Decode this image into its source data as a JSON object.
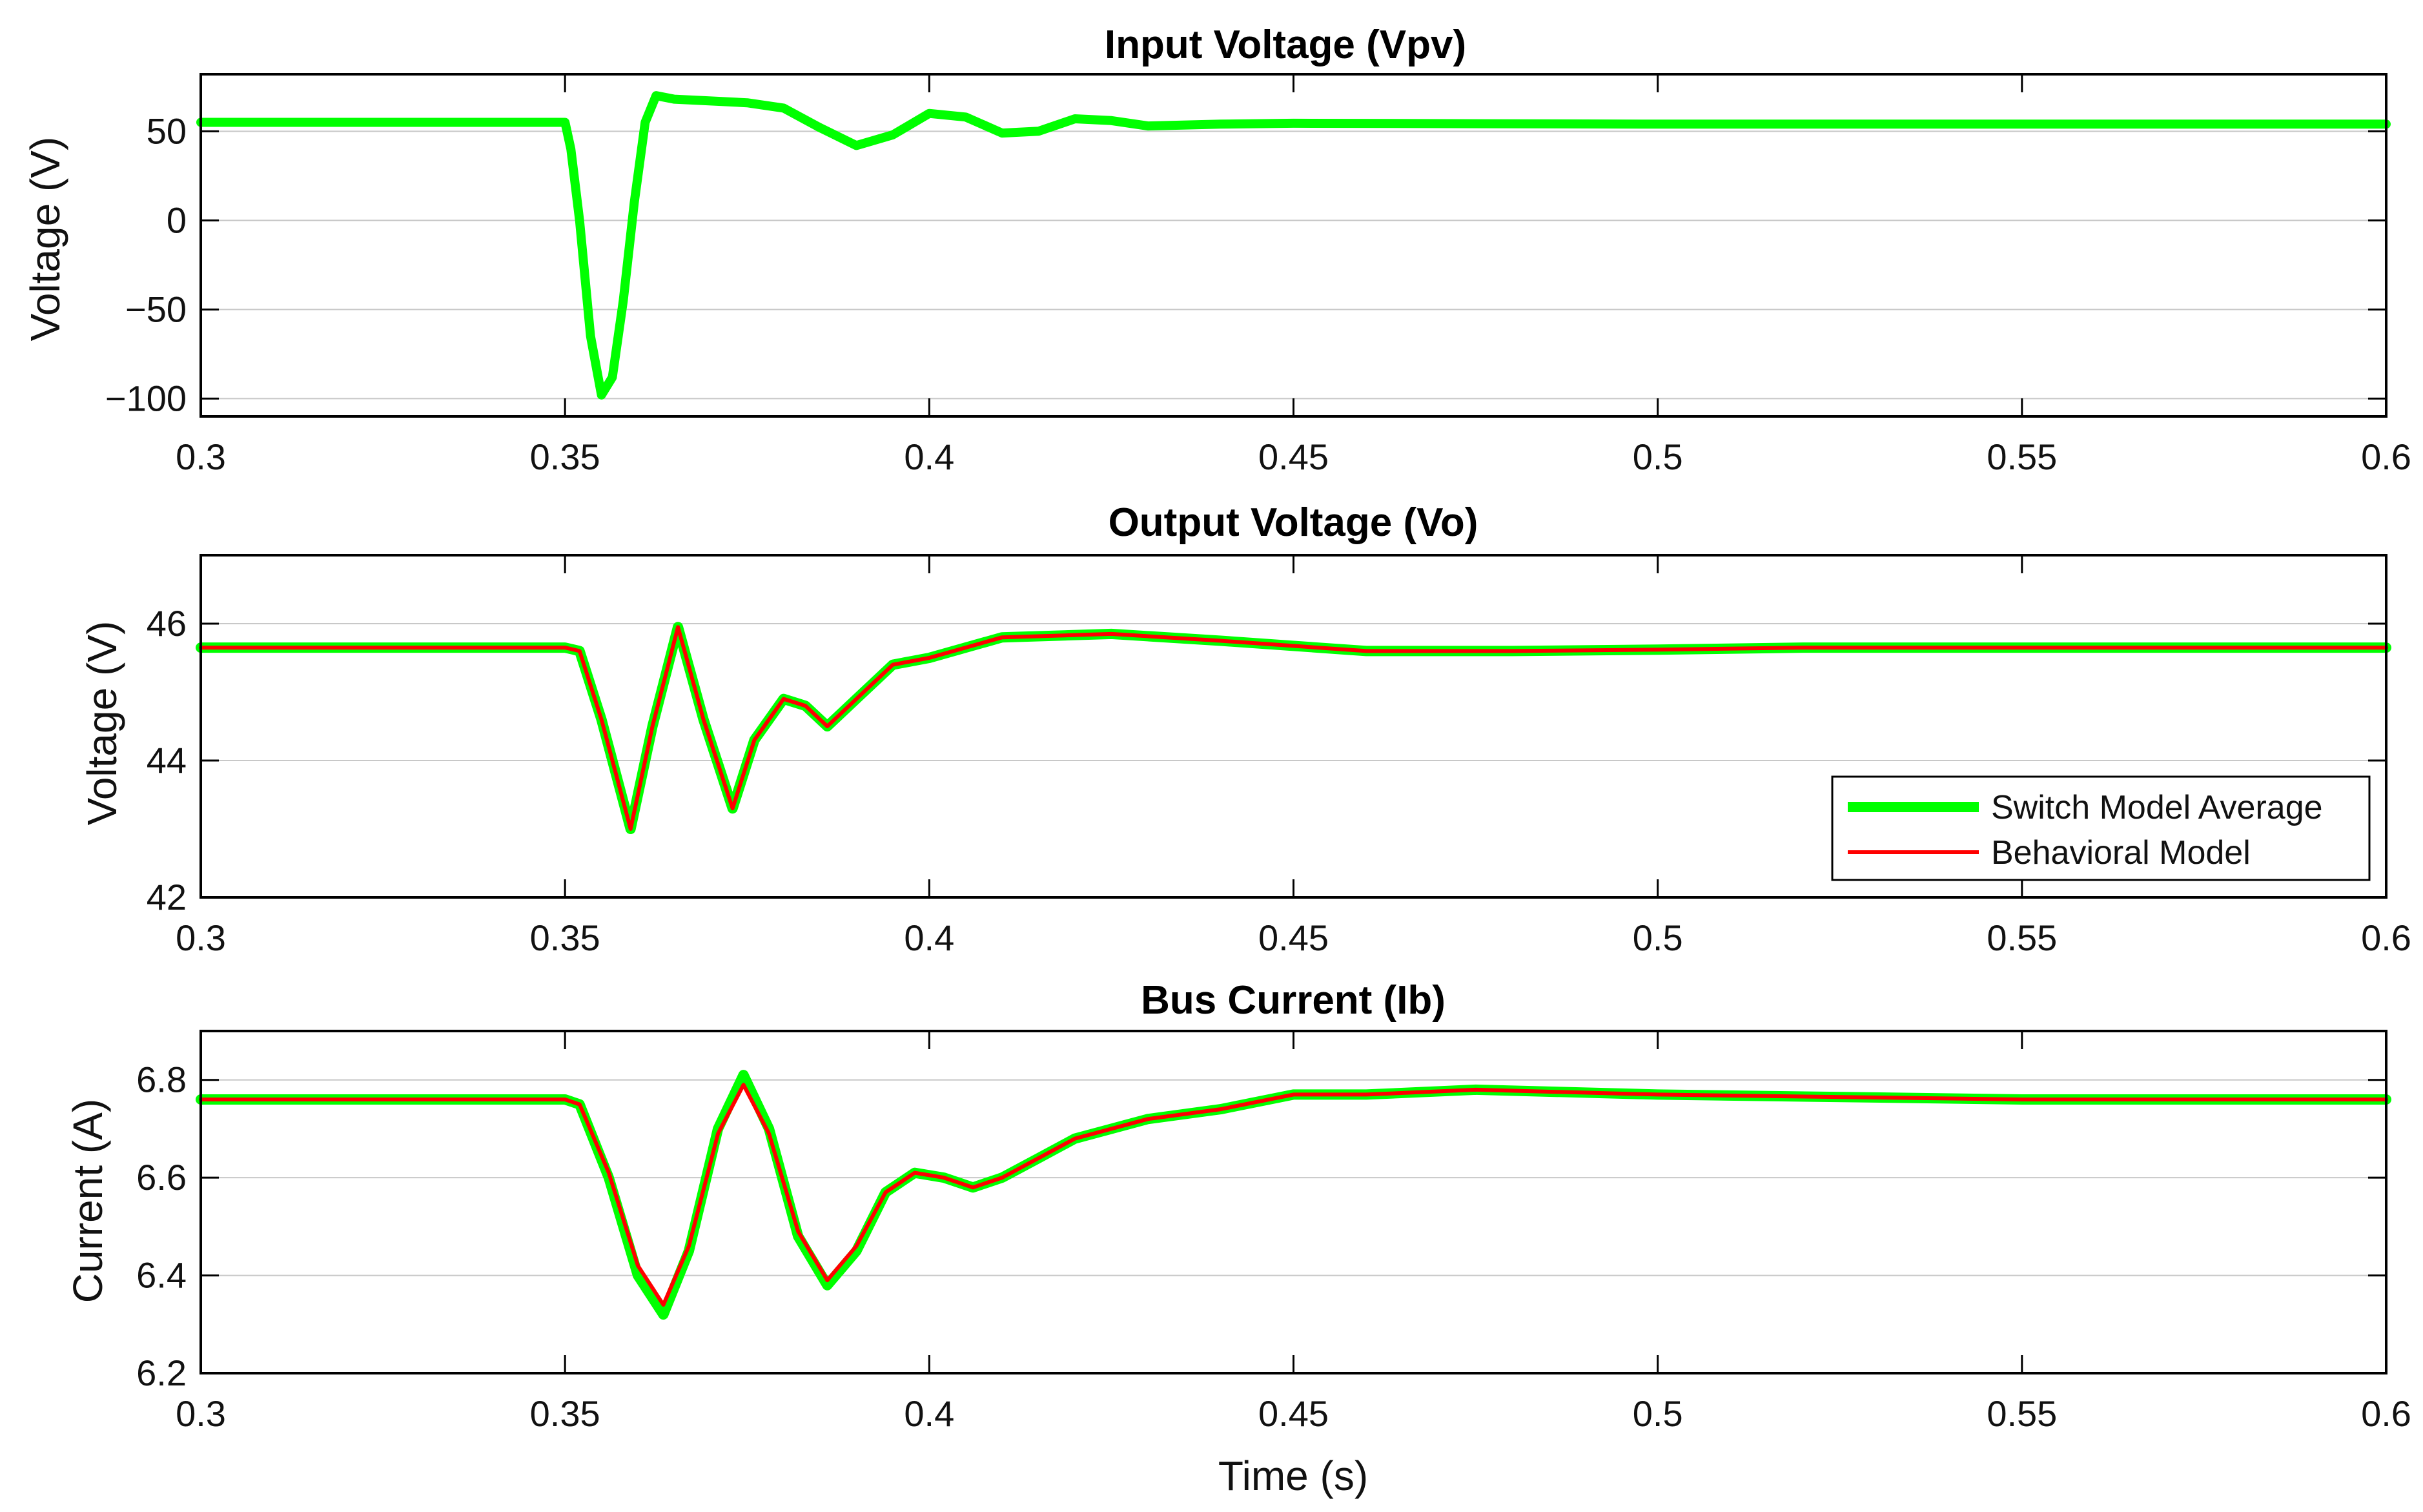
{
  "colors": {
    "switch_model": "#00ff00",
    "behavioral_model": "#ff0000",
    "grid": "#c8c8c8",
    "axis": "#000000"
  },
  "chart_data": [
    {
      "type": "line",
      "title": "Input Voltage (Vpv)",
      "xlabel": "",
      "ylabel": "Voltage (V)",
      "xlim": [
        0.3,
        0.6
      ],
      "ylim": [
        -110,
        82
      ],
      "xticks": [
        0.3,
        0.35,
        0.4,
        0.45,
        0.5,
        0.55,
        0.6
      ],
      "xtick_labels": [
        "0.3",
        "0.35",
        "0.4",
        "0.45",
        "0.5",
        "0.55",
        "0.6"
      ],
      "yticks": [
        -100,
        -50,
        0,
        50
      ],
      "ytick_labels": [
        "−100",
        "−50",
        "0",
        "50"
      ],
      "grid": true,
      "series": [
        {
          "name": "Switch Model Average",
          "color": "#00ff00",
          "x": [
            0.3,
            0.35,
            0.3508,
            0.352,
            0.3535,
            0.355,
            0.3565,
            0.358,
            0.3595,
            0.361,
            0.3625,
            0.365,
            0.37,
            0.375,
            0.38,
            0.385,
            0.39,
            0.395,
            0.4,
            0.405,
            0.41,
            0.415,
            0.42,
            0.425,
            0.43,
            0.44,
            0.45,
            0.5,
            0.55,
            0.6
          ],
          "values": [
            55,
            55,
            40,
            0,
            -65,
            -98,
            -88,
            -45,
            10,
            55,
            70,
            68,
            67,
            66,
            63,
            52,
            42,
            48,
            60,
            58,
            49,
            50,
            57,
            56,
            53,
            54,
            54.5,
            54,
            54,
            54
          ]
        }
      ]
    },
    {
      "type": "line",
      "title": "Output Voltage (Vo)",
      "xlabel": "",
      "ylabel": "Voltage (V)",
      "xlim": [
        0.3,
        0.6
      ],
      "ylim": [
        42,
        47
      ],
      "xticks": [
        0.3,
        0.35,
        0.4,
        0.45,
        0.5,
        0.55,
        0.6
      ],
      "xtick_labels": [
        "0.3",
        "0.35",
        "0.4",
        "0.45",
        "0.5",
        "0.55",
        "0.6"
      ],
      "yticks": [
        42,
        44,
        46
      ],
      "ytick_labels": [
        "42",
        "44",
        "46"
      ],
      "grid": true,
      "legend": {
        "position": "lower-right",
        "entries": [
          "Switch Model Average",
          "Behavioral Model"
        ]
      },
      "series": [
        {
          "name": "Switch Model Average",
          "color": "#00ff00",
          "x": [
            0.3,
            0.35,
            0.352,
            0.355,
            0.359,
            0.362,
            0.3655,
            0.369,
            0.373,
            0.376,
            0.38,
            0.383,
            0.386,
            0.39,
            0.395,
            0.4,
            0.41,
            0.425,
            0.44,
            0.46,
            0.48,
            0.5,
            0.52,
            0.55,
            0.6
          ],
          "values": [
            45.65,
            45.65,
            45.6,
            44.6,
            43.0,
            44.5,
            45.95,
            44.6,
            43.3,
            44.3,
            44.9,
            44.8,
            44.5,
            44.9,
            45.4,
            45.5,
            45.8,
            45.85,
            45.75,
            45.6,
            45.6,
            45.62,
            45.65,
            45.65,
            45.65
          ]
        },
        {
          "name": "Behavioral Model",
          "color": "#ff0000",
          "x": [
            0.3,
            0.35,
            0.352,
            0.355,
            0.359,
            0.362,
            0.3655,
            0.369,
            0.373,
            0.376,
            0.38,
            0.383,
            0.386,
            0.39,
            0.395,
            0.4,
            0.41,
            0.425,
            0.44,
            0.46,
            0.48,
            0.5,
            0.52,
            0.55,
            0.6
          ],
          "values": [
            45.65,
            45.65,
            45.6,
            44.6,
            43.0,
            44.5,
            45.95,
            44.6,
            43.3,
            44.3,
            44.9,
            44.8,
            44.5,
            44.9,
            45.4,
            45.5,
            45.8,
            45.85,
            45.75,
            45.6,
            45.6,
            45.62,
            45.65,
            45.65,
            45.65
          ]
        }
      ]
    },
    {
      "type": "line",
      "title": "Bus Current (Ib)",
      "xlabel": "Time (s)",
      "ylabel": "Current (A)",
      "xlim": [
        0.3,
        0.6
      ],
      "ylim": [
        6.2,
        6.9
      ],
      "xticks": [
        0.3,
        0.35,
        0.4,
        0.45,
        0.5,
        0.55,
        0.6
      ],
      "xtick_labels": [
        "0.3",
        "0.35",
        "0.4",
        "0.45",
        "0.5",
        "0.55",
        "0.6"
      ],
      "yticks": [
        6.2,
        6.4,
        6.6,
        6.8
      ],
      "ytick_labels": [
        "6.2",
        "6.4",
        "6.6",
        "6.8"
      ],
      "grid": true,
      "series": [
        {
          "name": "Switch Model Average",
          "color": "#00ff00",
          "x": [
            0.3,
            0.35,
            0.352,
            0.356,
            0.36,
            0.3635,
            0.367,
            0.371,
            0.3745,
            0.378,
            0.382,
            0.386,
            0.39,
            0.394,
            0.398,
            0.402,
            0.406,
            0.41,
            0.415,
            0.42,
            0.43,
            0.44,
            0.45,
            0.46,
            0.475,
            0.5,
            0.55,
            0.6
          ],
          "values": [
            6.76,
            6.76,
            6.75,
            6.6,
            6.4,
            6.32,
            6.45,
            6.7,
            6.81,
            6.7,
            6.48,
            6.38,
            6.45,
            6.57,
            6.61,
            6.6,
            6.58,
            6.6,
            6.64,
            6.68,
            6.72,
            6.74,
            6.77,
            6.77,
            6.78,
            6.77,
            6.76,
            6.76
          ]
        },
        {
          "name": "Behavioral Model",
          "color": "#ff0000",
          "x": [
            0.3,
            0.35,
            0.352,
            0.356,
            0.36,
            0.3635,
            0.367,
            0.371,
            0.3745,
            0.378,
            0.382,
            0.386,
            0.39,
            0.394,
            0.398,
            0.402,
            0.406,
            0.41,
            0.415,
            0.42,
            0.43,
            0.44,
            0.45,
            0.46,
            0.475,
            0.5,
            0.55,
            0.6
          ],
          "values": [
            6.76,
            6.76,
            6.75,
            6.61,
            6.42,
            6.34,
            6.46,
            6.69,
            6.79,
            6.69,
            6.49,
            6.39,
            6.46,
            6.57,
            6.61,
            6.6,
            6.58,
            6.6,
            6.64,
            6.68,
            6.72,
            6.74,
            6.77,
            6.77,
            6.78,
            6.77,
            6.76,
            6.76
          ]
        }
      ]
    }
  ],
  "legend": {
    "entries": [
      "Switch Model Average",
      "Behavioral Model"
    ]
  }
}
